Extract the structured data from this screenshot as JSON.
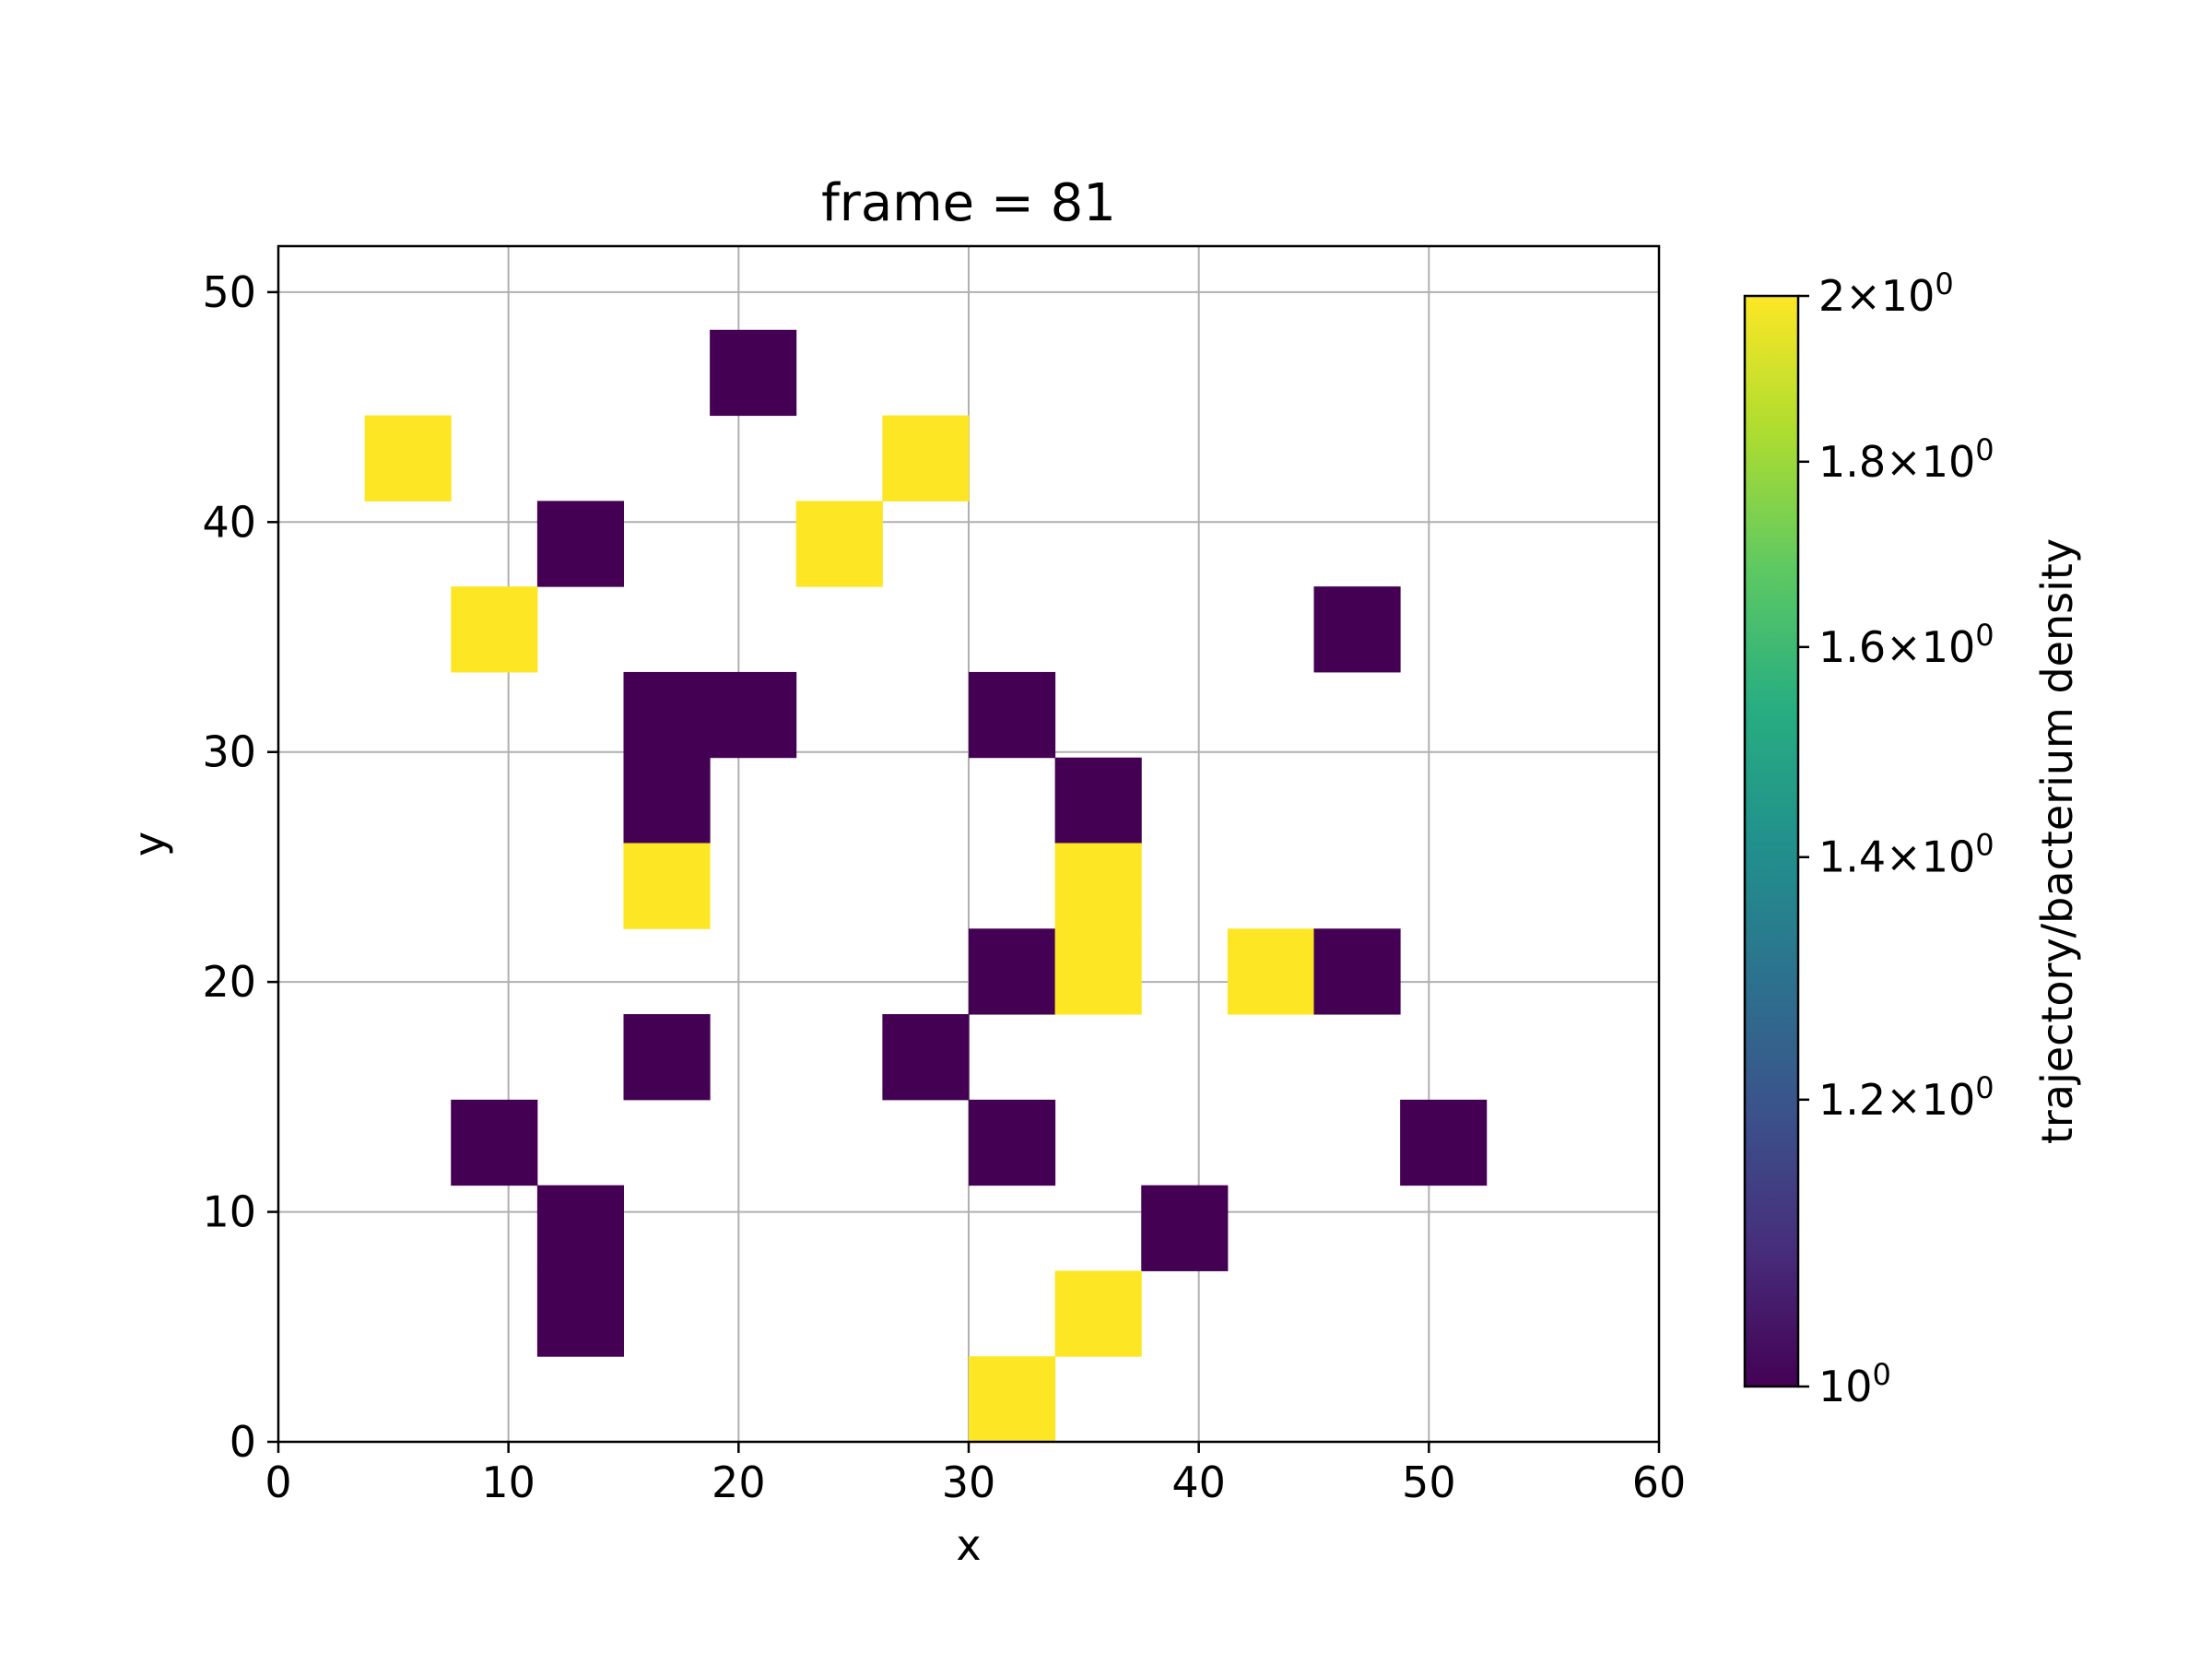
{
  "chart_data": {
    "type": "heatmap",
    "title": "frame = 81",
    "xlabel": "x",
    "ylabel": "y",
    "xlim": [
      0,
      60
    ],
    "ylim": [
      0,
      52
    ],
    "xticks": [
      0,
      10,
      20,
      30,
      40,
      50,
      60
    ],
    "yticks": [
      0,
      10,
      20,
      30,
      40,
      50
    ],
    "xtick_labels": [
      "0",
      "10",
      "20",
      "30",
      "40",
      "50",
      "60"
    ],
    "ytick_labels": [
      "0",
      "10",
      "20",
      "30",
      "40",
      "50"
    ],
    "grid": true,
    "bin_size": {
      "x": 3.75,
      "y": 3.72
    },
    "colorbar": {
      "label": "trajectory/bacterium density",
      "scale": "log",
      "range": [
        1,
        2
      ],
      "colormap": "viridis",
      "ticks": [
        {
          "value": 2.0,
          "mantissa": "2",
          "base": "10",
          "exponent": "0"
        },
        {
          "value": 1.8,
          "mantissa": "1.8",
          "base": "10",
          "exponent": "0"
        },
        {
          "value": 1.6,
          "mantissa": "1.6",
          "base": "10",
          "exponent": "0"
        },
        {
          "value": 1.4,
          "mantissa": "1.4",
          "base": "10",
          "exponent": "0"
        },
        {
          "value": 1.2,
          "mantissa": "1.2",
          "base": "10",
          "exponent": "0"
        },
        {
          "value": 1.0,
          "mantissa": "",
          "base": "10",
          "exponent": "0"
        }
      ]
    },
    "colors": {
      "low": "#440154",
      "high": "#fde725"
    },
    "cells": [
      {
        "x": 18.75,
        "y": 44.64,
        "value": 1
      },
      {
        "x": 3.75,
        "y": 40.92,
        "value": 2
      },
      {
        "x": 26.25,
        "y": 40.92,
        "value": 2
      },
      {
        "x": 11.25,
        "y": 37.2,
        "value": 1
      },
      {
        "x": 22.5,
        "y": 37.2,
        "value": 2
      },
      {
        "x": 7.5,
        "y": 33.48,
        "value": 2
      },
      {
        "x": 45.0,
        "y": 33.48,
        "value": 1
      },
      {
        "x": 15.0,
        "y": 29.76,
        "value": 1
      },
      {
        "x": 18.75,
        "y": 29.76,
        "value": 1
      },
      {
        "x": 30.0,
        "y": 29.76,
        "value": 1
      },
      {
        "x": 15.0,
        "y": 26.04,
        "value": 1
      },
      {
        "x": 33.75,
        "y": 26.04,
        "value": 1
      },
      {
        "x": 15.0,
        "y": 22.32,
        "value": 2
      },
      {
        "x": 33.75,
        "y": 22.32,
        "value": 2
      },
      {
        "x": 30.0,
        "y": 18.6,
        "value": 1
      },
      {
        "x": 33.75,
        "y": 18.6,
        "value": 2
      },
      {
        "x": 41.25,
        "y": 18.6,
        "value": 2
      },
      {
        "x": 45.0,
        "y": 18.6,
        "value": 1
      },
      {
        "x": 15.0,
        "y": 14.88,
        "value": 1
      },
      {
        "x": 26.25,
        "y": 14.88,
        "value": 1
      },
      {
        "x": 7.5,
        "y": 11.16,
        "value": 1
      },
      {
        "x": 30.0,
        "y": 11.16,
        "value": 1
      },
      {
        "x": 48.75,
        "y": 11.16,
        "value": 1
      },
      {
        "x": 11.25,
        "y": 7.44,
        "value": 1
      },
      {
        "x": 37.5,
        "y": 7.44,
        "value": 1
      },
      {
        "x": 11.25,
        "y": 3.72,
        "value": 1
      },
      {
        "x": 33.75,
        "y": 3.72,
        "value": 2
      },
      {
        "x": 30.0,
        "y": 0.0,
        "value": 2
      }
    ]
  }
}
